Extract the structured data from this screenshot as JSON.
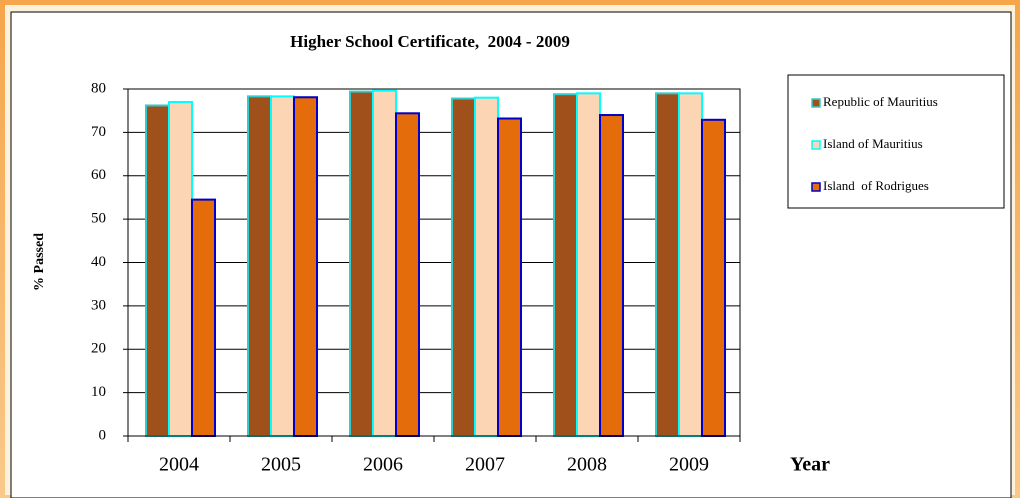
{
  "chart_data": {
    "type": "bar",
    "title": "Higher School Certificate,  2004 - 2009",
    "y_label": "% Passed",
    "x_label": "Year",
    "categories": [
      "2004",
      "2005",
      "2006",
      "2007",
      "2008",
      "2009"
    ],
    "series": [
      {
        "name": "Republic of Mauritius",
        "color": "#a0501a",
        "edge": "#33cccc",
        "values": [
          76.2,
          78.3,
          79.4,
          77.8,
          78.8,
          79.0
        ]
      },
      {
        "name": "Island of Mauritius",
        "color": "#fcd5b4",
        "edge": "#00ffff",
        "values": [
          77.0,
          78.3,
          79.6,
          78.0,
          79.0,
          79.0
        ]
      },
      {
        "name": "Island  of Rodrigues",
        "color": "#e46c0a",
        "edge": "#0000cc",
        "values": [
          54.5,
          78.1,
          74.4,
          73.2,
          74.0,
          72.9
        ]
      }
    ],
    "ylim": [
      0,
      80
    ],
    "yticks": [
      0,
      10,
      20,
      30,
      40,
      50,
      60,
      70,
      80
    ],
    "grid": true,
    "legend": "right"
  }
}
